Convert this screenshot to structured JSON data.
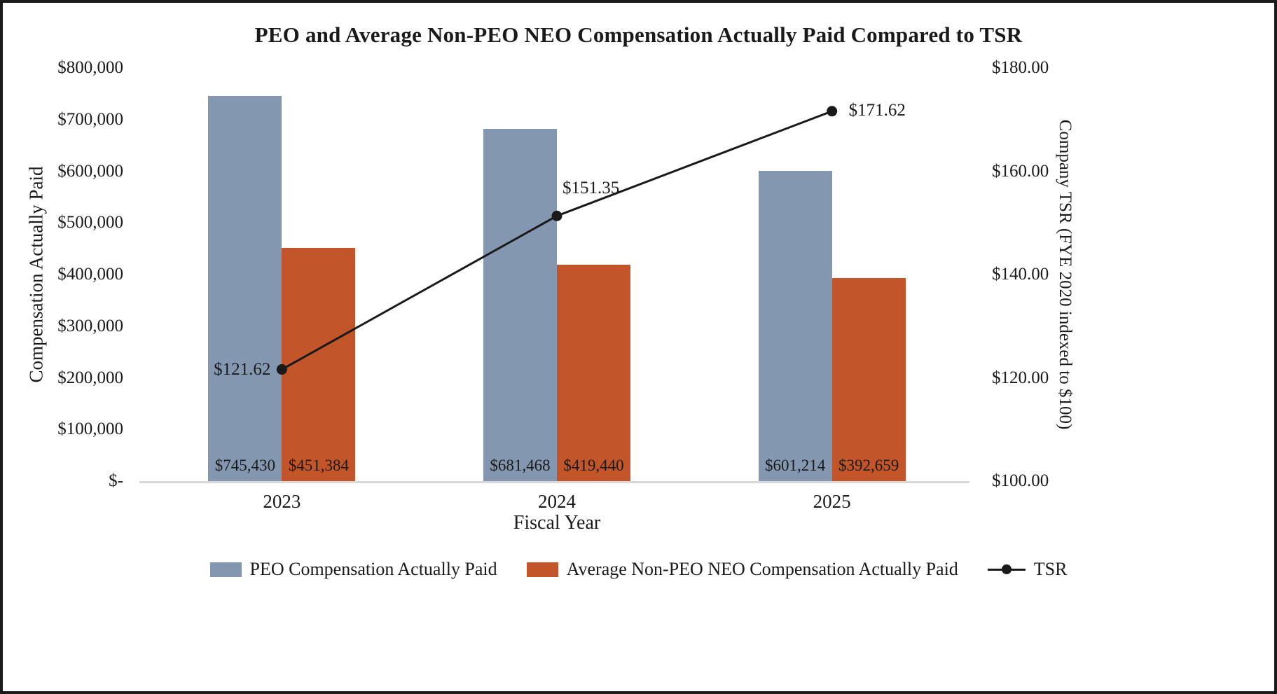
{
  "chart_data": {
    "type": "bar",
    "subtype": "grouped-bars-with-line-overlay",
    "title": "PEO and Average Non-PEO NEO Compensation Actually Paid Compared to TSR",
    "categories": [
      "2023",
      "2024",
      "2025"
    ],
    "bar_series": [
      {
        "name": "PEO Compensation Actually Paid",
        "color": "#8497B0",
        "values": [
          745430,
          681468,
          601214
        ],
        "labels": [
          "$745,430",
          "$681,468",
          "$601,214"
        ]
      },
      {
        "name": "Average Non-PEO NEO Compensation Actually Paid",
        "color": "#C2562A",
        "values": [
          451384,
          419440,
          392659
        ],
        "labels": [
          "$451,384",
          "$419,440",
          "$392,659"
        ]
      }
    ],
    "line_series": {
      "name": "TSR",
      "color": "#1a1a1a",
      "values": [
        121.62,
        151.35,
        171.62
      ],
      "labels": [
        "$121.62",
        "$151.35",
        "$171.62"
      ]
    },
    "left_axis": {
      "title": "Compensation Actually Paid",
      "min": 0,
      "max": 800000,
      "ticks": [
        "$800,000",
        "$700,000",
        "$600,000",
        "$500,000",
        "$400,000",
        "$300,000",
        "$200,000",
        "$100,000",
        "$-"
      ]
    },
    "right_axis": {
      "title": "Company TSR (FYE 2020 indexed to $100)",
      "min": 100,
      "max": 180,
      "ticks": [
        "$180.00",
        "$160.00",
        "$140.00",
        "$120.00",
        "$100.00"
      ]
    },
    "x_axis": {
      "title": "Fiscal Year"
    },
    "grid": "off",
    "legend_position": "bottom",
    "legend": [
      {
        "label": "PEO Compensation Actually Paid",
        "swatch": "bar",
        "color": "#8497B0"
      },
      {
        "label": "Average Non-PEO NEO Compensation Actually Paid",
        "swatch": "bar",
        "color": "#C2562A"
      },
      {
        "label": "TSR",
        "swatch": "line-marker",
        "color": "#1a1a1a"
      }
    ]
  }
}
